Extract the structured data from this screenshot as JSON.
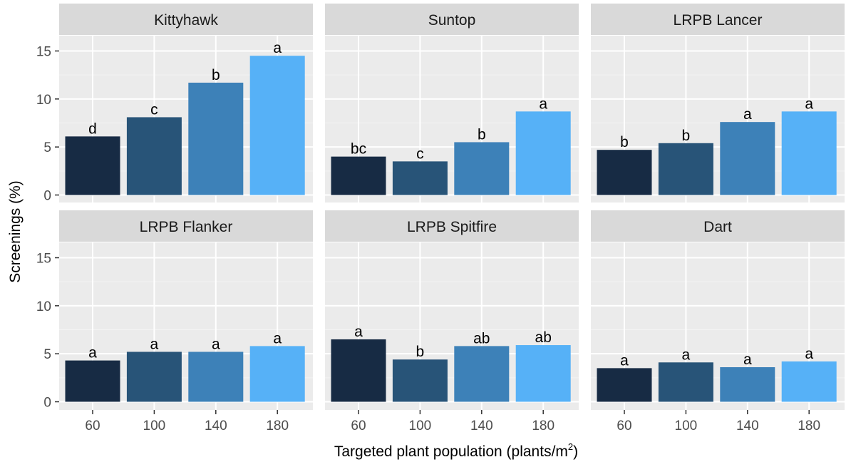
{
  "chart_data": {
    "type": "bar",
    "layout": "faceted 2 rows x 3 columns",
    "xlabel": "Targeted plant population (plants/m",
    "xlabel_superscript": "2",
    "xlabel_close": ")",
    "ylabel": "Screenings (%)",
    "ylim": [
      0,
      16.5
    ],
    "yticks": [
      0,
      5,
      10,
      15
    ],
    "categories": [
      "60",
      "100",
      "140",
      "180"
    ],
    "colors": [
      "#172b44",
      "#285478",
      "#3d81b8",
      "#56b1f7"
    ],
    "panel_background": "#ebebeb",
    "strip_background": "#d9d9d9",
    "grid": true,
    "legend": "none",
    "panels": [
      {
        "title": "Kittyhawk",
        "values": [
          6.1,
          8.1,
          11.7,
          14.5
        ],
        "letters": [
          "d",
          "c",
          "b",
          "a"
        ]
      },
      {
        "title": "Suntop",
        "values": [
          4.0,
          3.5,
          5.5,
          8.7
        ],
        "letters": [
          "bc",
          "c",
          "b",
          "a"
        ]
      },
      {
        "title": "LRPB Lancer",
        "values": [
          4.7,
          5.4,
          7.6,
          8.7
        ],
        "letters": [
          "b",
          "b",
          "a",
          "a"
        ]
      },
      {
        "title": "LRPB Flanker",
        "values": [
          4.3,
          5.2,
          5.2,
          5.8
        ],
        "letters": [
          "a",
          "a",
          "a",
          "a"
        ]
      },
      {
        "title": "LRPB Spitfire",
        "values": [
          6.5,
          4.4,
          5.8,
          5.9
        ],
        "letters": [
          "a",
          "b",
          "ab",
          "ab"
        ]
      },
      {
        "title": "Dart",
        "values": [
          3.5,
          4.1,
          3.6,
          4.2
        ],
        "letters": [
          "a",
          "a",
          "a",
          "a"
        ]
      }
    ]
  }
}
